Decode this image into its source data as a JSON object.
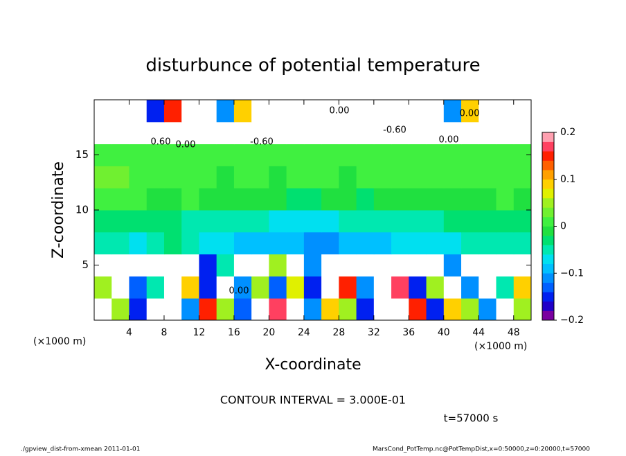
{
  "chart_data": {
    "type": "heatmap",
    "title": "disturbunce of potential temperature",
    "x_label": "X-coordinate",
    "y_label": "Z-coordinate",
    "x_unit": "(×1000 m)",
    "y_unit": "(×1000 m)",
    "xlim": [
      0,
      50
    ],
    "ylim": [
      0,
      20
    ],
    "xticks": [
      4,
      8,
      12,
      16,
      20,
      24,
      28,
      32,
      36,
      40,
      44,
      48
    ],
    "yticks": [
      5,
      10,
      15
    ],
    "x": [
      1,
      3,
      5,
      7,
      9,
      11,
      13,
      15,
      17,
      19,
      21,
      23,
      25,
      27,
      29,
      31,
      33,
      35,
      37,
      39,
      41,
      43,
      45,
      47,
      49
    ],
    "y": [
      1,
      3,
      5,
      7,
      9,
      11,
      13,
      15,
      17,
      19
    ],
    "z": [
      [
        0.3,
        0.05,
        -0.15,
        0.3,
        0.3,
        -0.1,
        0.15,
        0.05,
        -0.12,
        0.3,
        0.18,
        0.3,
        -0.1,
        0.1,
        0.05,
        -0.15,
        0.25,
        0.3,
        0.15,
        -0.15,
        0.1,
        0.05,
        -0.1,
        0.3,
        0.05
      ],
      [
        0.05,
        0.3,
        -0.12,
        -0.05,
        0.3,
        0.1,
        -0.15,
        0.3,
        -0.1,
        0.05,
        -0.12,
        0.08,
        -0.15,
        0.3,
        0.15,
        -0.1,
        0.3,
        0.18,
        -0.15,
        0.05,
        0.3,
        -0.1,
        0.3,
        -0.05,
        0.1
      ],
      [
        0.3,
        0.3,
        0.3,
        0.3,
        0.3,
        0.3,
        -0.15,
        -0.05,
        0.3,
        0.3,
        0.05,
        0.3,
        -0.1,
        0.3,
        0.3,
        0.3,
        0.3,
        0.3,
        0.3,
        0.3,
        -0.1,
        0.3,
        0.3,
        0.3,
        0.3
      ],
      [
        -0.05,
        -0.05,
        -0.06,
        -0.04,
        -0.03,
        -0.05,
        -0.06,
        -0.07,
        -0.08,
        -0.08,
        -0.09,
        -0.09,
        -0.1,
        -0.1,
        -0.09,
        -0.08,
        -0.08,
        -0.07,
        -0.07,
        -0.06,
        -0.06,
        -0.05,
        -0.05,
        -0.05,
        -0.04
      ],
      [
        -0.02,
        -0.02,
        -0.03,
        -0.02,
        -0.03,
        -0.04,
        -0.05,
        -0.05,
        -0.05,
        -0.05,
        -0.06,
        -0.06,
        -0.06,
        -0.06,
        -0.05,
        -0.05,
        -0.05,
        -0.04,
        -0.04,
        -0.04,
        -0.03,
        -0.03,
        -0.03,
        -0.03,
        -0.03
      ],
      [
        0.02,
        0.02,
        0.01,
        0.0,
        -0.01,
        0.01,
        0.0,
        -0.01,
        -0.01,
        0.0,
        -0.01,
        -0.02,
        -0.02,
        -0.01,
        -0.01,
        -0.02,
        -0.01,
        -0.01,
        0.0,
        0.0,
        -0.01,
        0.0,
        0.0,
        0.01,
        0.0
      ],
      [
        0.03,
        0.03,
        0.02,
        0.02,
        0.01,
        0.01,
        0.01,
        0.0,
        0.01,
        0.01,
        0.0,
        0.01,
        0.01,
        0.01,
        0.0,
        0.01,
        0.01,
        0.01,
        0.01,
        0.01,
        0.01,
        0.01,
        0.02,
        0.01,
        0.01
      ],
      [
        0.01,
        0.01,
        0.01,
        0.01,
        0.01,
        0.01,
        0.01,
        0.01,
        0.01,
        0.01,
        0.01,
        0.01,
        0.01,
        0.01,
        0.01,
        0.01,
        0.01,
        0.01,
        0.01,
        0.01,
        0.01,
        0.01,
        0.01,
        0.01,
        0.01
      ],
      [
        0.3,
        0.3,
        0.3,
        0.3,
        -0.3,
        0.3,
        0.3,
        -0.3,
        -0.3,
        0.3,
        0.3,
        0.3,
        0.3,
        0.3,
        0.3,
        0.3,
        -0.3,
        0.3,
        0.3,
        0.3,
        0.3,
        0.3,
        0.3,
        0.3,
        0.3
      ],
      [
        0.3,
        0.3,
        0.3,
        -0.15,
        0.15,
        0.3,
        0.3,
        -0.1,
        0.1,
        0.3,
        0.3,
        0.3,
        0.3,
        0.3,
        0.3,
        0.3,
        0.3,
        0.3,
        0.3,
        0.3,
        -0.1,
        0.1,
        0.3,
        0.3,
        0.3
      ]
    ],
    "levels": [
      -0.2,
      -0.18,
      -0.16,
      -0.14,
      -0.12,
      -0.1,
      -0.08,
      -0.06,
      -0.04,
      -0.02,
      0,
      0.02,
      0.04,
      0.06,
      0.08,
      0.1,
      0.12,
      0.14,
      0.16,
      0.18,
      0.2
    ],
    "colors": [
      "#7a00a0",
      "#2000c8",
      "#0020f0",
      "#0060ff",
      "#0090ff",
      "#00c0ff",
      "#00e0f0",
      "#00e8b0",
      "#00e070",
      "#20e040",
      "#40f040",
      "#70f030",
      "#a0f020",
      "#e0f000",
      "#ffd000",
      "#ffa000",
      "#ff6000",
      "#ff2000",
      "#ff4060",
      "#ffa0b0"
    ],
    "out_of_range_color": "#ffffff",
    "colorbar_ticks": [
      {
        "value": 0.2,
        "label": "0.2"
      },
      {
        "value": 0.1,
        "label": "0.1"
      },
      0,
      {
        "value": -0.1,
        "label": "−0.1"
      },
      {
        "value": -0.2,
        "label": "−0.2"
      }
    ],
    "annotations": [
      "0.60",
      "-0.60",
      "-0.60",
      "0.00",
      "0.00",
      "0.00",
      "0.00",
      "0.00"
    ],
    "contour_interval": "CONTOUR INTERVAL = 3.000E-01",
    "time_label": "t=57000 s",
    "footer_left": "./gpview_dist-from-xmean  2011-01-01",
    "footer_right": "MarsCond_PotTemp.nc@PotTempDist,x=0:50000,z=0:20000,t=57000"
  }
}
